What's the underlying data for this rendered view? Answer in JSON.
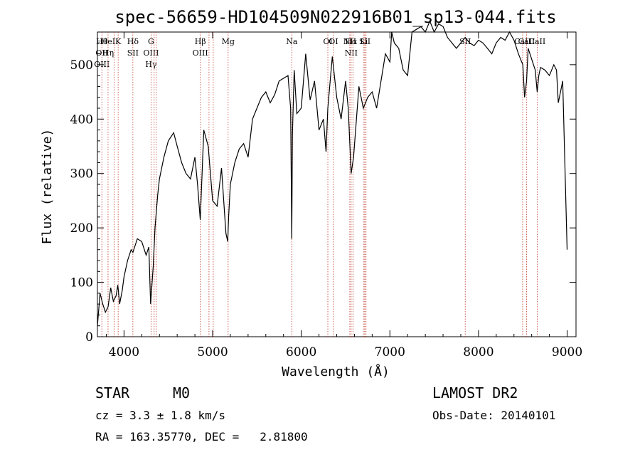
{
  "chart_data": {
    "type": "line",
    "title": "spec-56659-HD104509N022916B01_sp13-044.fits",
    "xlabel": "Wavelength (Å)",
    "ylabel": "Flux (relative)",
    "xlim": [
      3700,
      9100
    ],
    "ylim": [
      0,
      560
    ],
    "xticks": [
      4000,
      5000,
      6000,
      7000,
      8000,
      9000
    ],
    "yticks": [
      0,
      100,
      200,
      300,
      400,
      500
    ],
    "grid": false,
    "series": [
      {
        "x": [
          3700,
          3730,
          3760,
          3790,
          3820,
          3850,
          3880,
          3910,
          3930,
          3950,
          3980,
          4000,
          4040,
          4080,
          4100,
          4150,
          4200,
          4250,
          4280,
          4300,
          4330,
          4350,
          4380,
          4400,
          4450,
          4500,
          4560,
          4600,
          4650,
          4700,
          4750,
          4800,
          4830,
          4860,
          4900,
          4950,
          5000,
          5050,
          5100,
          5150,
          5170,
          5180,
          5200,
          5250,
          5300,
          5350,
          5400,
          5450,
          5500,
          5550,
          5600,
          5650,
          5700,
          5750,
          5800,
          5850,
          5880,
          5893,
          5900,
          5920,
          5950,
          6000,
          6050,
          6100,
          6150,
          6200,
          6250,
          6280,
          6300,
          6350,
          6400,
          6450,
          6500,
          6530,
          6563,
          6590,
          6650,
          6700,
          6750,
          6800,
          6850,
          6900,
          6950,
          7000,
          7020,
          7050,
          7100,
          7150,
          7200,
          7250,
          7300,
          7350,
          7400,
          7450,
          7500,
          7550,
          7600,
          7650,
          7700,
          7750,
          7800,
          7850,
          7900,
          7950,
          8000,
          8050,
          8100,
          8150,
          8200,
          8250,
          8300,
          8350,
          8400,
          8450,
          8500,
          8520,
          8542,
          8560,
          8600,
          8640,
          8662,
          8680,
          8700,
          8750,
          8800,
          8850,
          8880,
          8900,
          8950,
          9000
        ],
        "values": [
          20,
          80,
          60,
          45,
          55,
          90,
          65,
          75,
          95,
          60,
          85,
          110,
          140,
          160,
          155,
          180,
          175,
          150,
          165,
          60,
          130,
          200,
          260,
          290,
          330,
          360,
          375,
          350,
          320,
          300,
          290,
          330,
          280,
          215,
          380,
          350,
          250,
          240,
          310,
          190,
          175,
          220,
          280,
          320,
          345,
          355,
          330,
          400,
          420,
          440,
          450,
          430,
          445,
          470,
          475,
          480,
          420,
          180,
          370,
          490,
          410,
          420,
          520,
          435,
          470,
          380,
          400,
          340,
          420,
          515,
          440,
          400,
          470,
          420,
          300,
          330,
          460,
          420,
          440,
          450,
          420,
          470,
          520,
          505,
          560,
          540,
          530,
          490,
          480,
          560,
          565,
          570,
          560,
          580,
          560,
          575,
          570,
          550,
          540,
          530,
          540,
          550,
          540,
          535,
          545,
          540,
          530,
          520,
          540,
          550,
          545,
          560,
          545,
          520,
          500,
          440,
          470,
          530,
          510,
          490,
          450,
          480,
          495,
          490,
          480,
          500,
          490,
          430,
          470,
          160
        ]
      }
    ],
    "line_marks": [
      {
        "x": 3750,
        "labels": [
          "Hθ",
          "OII",
          "OIII"
        ]
      },
      {
        "x": 3820,
        "labels": [
          "HeI",
          "Hη"
        ]
      },
      {
        "x": 3889,
        "labels": []
      },
      {
        "x": 3934,
        "labels": [
          "K"
        ]
      },
      {
        "x": 4100,
        "labels": [
          "Hδ",
          "SII"
        ]
      },
      {
        "x": 4305,
        "labels": [
          "G",
          "OIII",
          "Hγ"
        ]
      },
      {
        "x": 4340,
        "labels": []
      },
      {
        "x": 4363,
        "labels": []
      },
      {
        "x": 4861,
        "labels": [
          "Hβ",
          "OIII"
        ]
      },
      {
        "x": 4959,
        "labels": []
      },
      {
        "x": 5007,
        "labels": []
      },
      {
        "x": 5175,
        "labels": [
          "Mg"
        ]
      },
      {
        "x": 5893,
        "labels": [
          "Na"
        ]
      },
      {
        "x": 6300,
        "labels": [
          "OI"
        ]
      },
      {
        "x": 6363,
        "labels": [
          "OI"
        ]
      },
      {
        "x": 6548,
        "labels": [
          "NII"
        ]
      },
      {
        "x": 6563,
        "labels": [
          "Hα",
          "NII"
        ]
      },
      {
        "x": 6583,
        "labels": []
      },
      {
        "x": 6707,
        "labels": [
          "Li"
        ]
      },
      {
        "x": 6717,
        "labels": [
          "SII"
        ]
      },
      {
        "x": 6731,
        "labels": []
      },
      {
        "x": 7850,
        "labels": [
          "SII"
        ]
      },
      {
        "x": 8498,
        "labels": [
          "CaII"
        ]
      },
      {
        "x": 8542,
        "labels": [
          "CaII"
        ]
      },
      {
        "x": 8662,
        "labels": [
          "CaII"
        ]
      }
    ]
  },
  "info": {
    "class_label": "STAR",
    "subclass": "M0",
    "survey": "LAMOST DR2",
    "cz_text": "cz = 3.3 ± 1.8 km/s",
    "obs_date_text": "Obs-Date: 20140101",
    "coords_text": "RA = 163.35770, DEC =   2.81800"
  }
}
